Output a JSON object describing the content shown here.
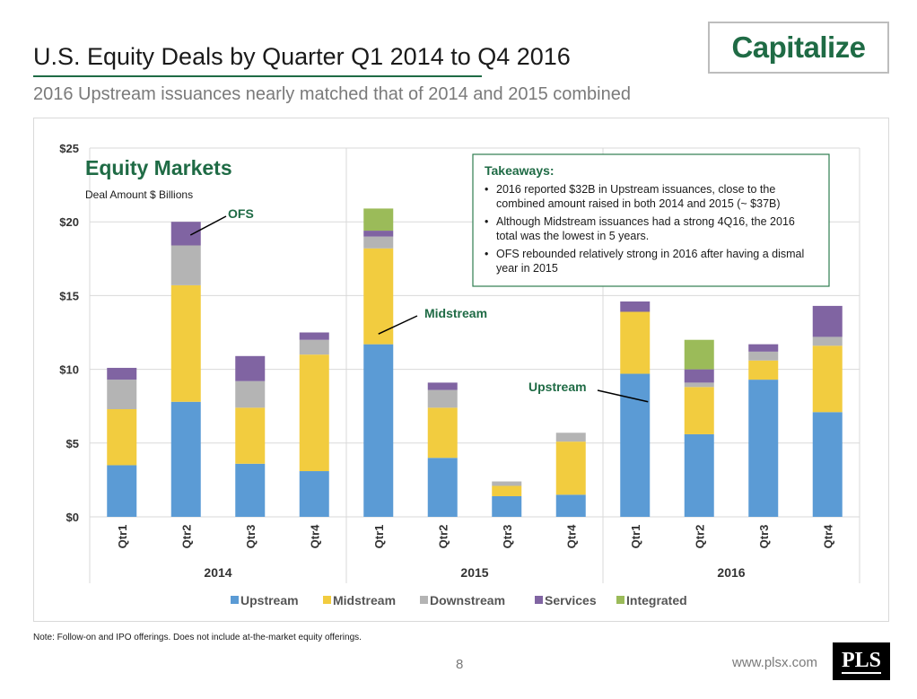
{
  "header": {
    "title": "U.S. Equity Deals by Quarter Q1 2014 to Q4 2016",
    "subtitle": "2016 Upstream issuances nearly matched that of 2014 and 2015 combined",
    "brand": "Capitalize"
  },
  "chart_data": {
    "type": "bar",
    "stacked": true,
    "title": "Equity Markets",
    "ylabel": "Deal Amount $ Billions",
    "ylim": [
      0,
      25
    ],
    "yticks": [
      0,
      5,
      10,
      15,
      20,
      25
    ],
    "ytick_labels": [
      "$0",
      "$5",
      "$10",
      "$15",
      "$20",
      "$25"
    ],
    "categories": [
      "Qtr1",
      "Qtr2",
      "Qtr3",
      "Qtr4",
      "Qtr1",
      "Qtr2",
      "Qtr3",
      "Qtr4",
      "Qtr1",
      "Qtr2",
      "Qtr3",
      "Qtr4"
    ],
    "groups": [
      {
        "label": "2014",
        "start": 0,
        "count": 4
      },
      {
        "label": "2015",
        "start": 4,
        "count": 4
      },
      {
        "label": "2016",
        "start": 8,
        "count": 4
      }
    ],
    "series": [
      {
        "name": "Upstream",
        "color": "#5b9bd5",
        "values": [
          3.5,
          7.8,
          3.6,
          3.1,
          11.7,
          4.0,
          1.4,
          1.5,
          9.7,
          5.6,
          9.3,
          7.1
        ]
      },
      {
        "name": "Midstream",
        "color": "#f2cc3f",
        "values": [
          3.8,
          7.9,
          3.8,
          7.9,
          6.5,
          3.4,
          0.7,
          3.6,
          4.2,
          3.2,
          1.3,
          4.5
        ]
      },
      {
        "name": "Downstream",
        "color": "#b4b4b4",
        "values": [
          2.0,
          2.7,
          1.8,
          1.0,
          0.8,
          1.2,
          0.3,
          0.6,
          0.0,
          0.3,
          0.6,
          0.6
        ]
      },
      {
        "name": "Services",
        "color": "#8064a2",
        "values": [
          0.8,
          1.6,
          1.7,
          0.5,
          0.4,
          0.5,
          0.0,
          0.0,
          0.7,
          0.9,
          0.5,
          2.1
        ]
      },
      {
        "name": "Integrated",
        "color": "#9bbb59",
        "values": [
          0.0,
          0.0,
          0.0,
          0.0,
          1.5,
          0.0,
          0.0,
          0.0,
          0.0,
          2.0,
          0.0,
          0.0
        ]
      }
    ],
    "legend_position": "bottom",
    "annotations": [
      {
        "text": "OFS",
        "target_category": 1,
        "target_value": 19.1
      },
      {
        "text": "Midstream",
        "target_category": 4,
        "target_value": 12.4
      },
      {
        "text": "Upstream",
        "target_category": 8,
        "target_value": 7.8
      }
    ],
    "takeaways": {
      "heading": "Takeaways:",
      "bullets": [
        [
          "2016 reported $32B in Upstream issuances, close to the",
          "combined amount raised in both 2014 and 2015 (~ $37B)"
        ],
        [
          "Although Midstream issuances had a strong 4Q16, the 2016",
          "total was the lowest in 5 years."
        ],
        [
          "OFS rebounded relatively strong in 2016 after having a dismal",
          "year in 2015"
        ]
      ]
    }
  },
  "footer": {
    "note": "Note: Follow-on and IPO offerings.  Does not include at-the-market equity offerings.",
    "page_number": "8",
    "website": "www.plsx.com",
    "logo": "PLS"
  },
  "colors": {
    "brand_green": "#1f6b45",
    "gridline": "#d9d9d9",
    "takeaway_border": "#2e7d4f"
  }
}
